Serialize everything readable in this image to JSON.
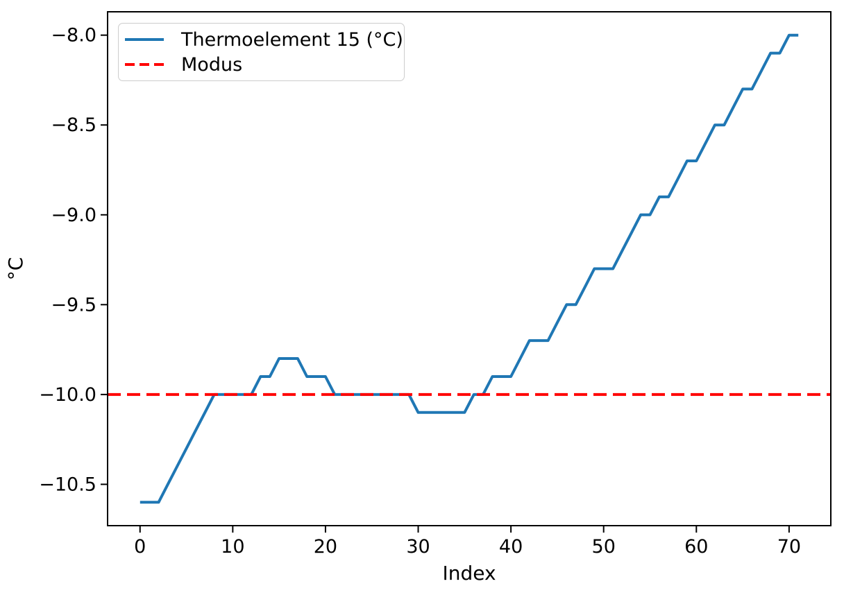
{
  "chart_data": {
    "type": "line",
    "title": "",
    "xlabel": "Index",
    "ylabel": "°C",
    "grid": false,
    "legend_position": "upper left",
    "xlim": [
      -3.5,
      74.5
    ],
    "ylim": [
      -10.73,
      -7.87
    ],
    "x_ticks": [
      0,
      10,
      20,
      30,
      40,
      50,
      60,
      70
    ],
    "y_ticks": [
      -8.0,
      -8.5,
      -9.0,
      -9.5,
      -10.0,
      -10.5
    ],
    "series": [
      {
        "name": "Thermoelement 15 (°C)",
        "color": "#1f77b4",
        "linestyle": "solid",
        "x_start": 0,
        "values": [
          -10.6,
          -10.6,
          -10.6,
          -10.5,
          -10.4,
          -10.3,
          -10.2,
          -10.1,
          -10.0,
          -10.0,
          -10.0,
          -10.0,
          -10.0,
          -9.9,
          -9.9,
          -9.8,
          -9.8,
          -9.8,
          -9.9,
          -9.9,
          -9.9,
          -10.0,
          -10.0,
          -10.0,
          -10.0,
          -10.0,
          -10.0,
          -10.0,
          -10.0,
          -10.0,
          -10.1,
          -10.1,
          -10.1,
          -10.1,
          -10.1,
          -10.1,
          -10.0,
          -10.0,
          -9.9,
          -9.9,
          -9.9,
          -9.8,
          -9.7,
          -9.7,
          -9.7,
          -9.6,
          -9.5,
          -9.5,
          -9.4,
          -9.3,
          -9.3,
          -9.3,
          -9.2,
          -9.1,
          -9.0,
          -9.0,
          -8.9,
          -8.9,
          -8.8,
          -8.7,
          -8.7,
          -8.6,
          -8.5,
          -8.5,
          -8.4,
          -8.3,
          -8.3,
          -8.2,
          -8.1,
          -8.1,
          -8.0,
          -8.0
        ]
      },
      {
        "name": "Modus",
        "color": "#ff0000",
        "linestyle": "dashed",
        "value": -10.0
      }
    ]
  },
  "legend": {
    "items": [
      {
        "label": "Thermoelement 15 (°C)"
      },
      {
        "label": "Modus"
      }
    ]
  }
}
